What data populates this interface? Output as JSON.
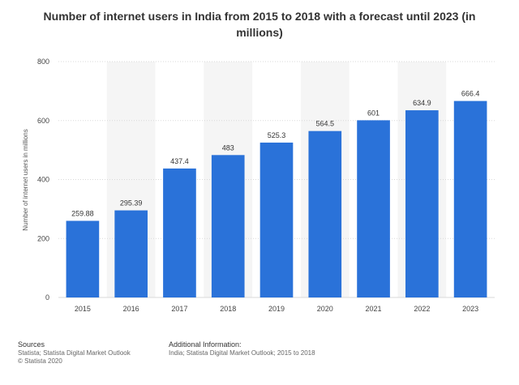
{
  "chart_data": {
    "type": "bar",
    "title": "Number of internet users in India from 2015 to 2018 with a forecast until 2023 (in millions)",
    "xlabel": "",
    "ylabel": "Number of internet users in millions",
    "categories": [
      "2015",
      "2016",
      "2017",
      "2018",
      "2019",
      "2020",
      "2021",
      "2022",
      "2023"
    ],
    "values": [
      259.88,
      295.39,
      437.4,
      483,
      525.3,
      564.5,
      601,
      634.9,
      666.4
    ],
    "value_labels": [
      "259.88",
      "295.39",
      "437.4",
      "483",
      "525.3",
      "564.5",
      "601",
      "634.9",
      "666.4"
    ],
    "ylim": [
      0,
      800
    ],
    "yticks": [
      "0",
      "200",
      "400",
      "600",
      "800"
    ],
    "grid": true,
    "legend": "none",
    "bar_color": "#2a72d9"
  },
  "footer": {
    "sources_heading": "Sources",
    "sources_line1": "Statista; Statista Digital Market Outlook",
    "sources_line2": "© Statista 2020",
    "info_heading": "Additional Information:",
    "info_line1": "India; Statista Digital Market Outlook; 2015 to 2018"
  }
}
